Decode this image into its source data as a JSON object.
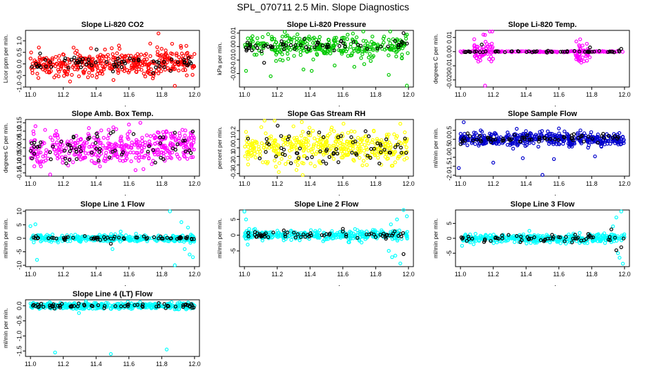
{
  "figure_title": "SPL_070711  2.5 Min. Slope Diagnostics",
  "chart_data": [
    {
      "type": "scatter",
      "title": "Slope Li-820 CO2",
      "ylabel": "Licor ppm per min.",
      "xlim": [
        10.97,
        12.03
      ],
      "ylim": [
        -1.0,
        1.45
      ],
      "xticks": [
        "11.0",
        "11.2",
        "11.4",
        "11.6",
        "11.8",
        "12.0"
      ],
      "yticks": [
        {
          "v": 1.0,
          "label": "1.0"
        },
        {
          "v": 0.5,
          "label": "0.5"
        },
        {
          "v": 0.0,
          "label": "0.0"
        },
        {
          "v": -0.5,
          "label": "-0.5"
        },
        {
          "v": -1.0,
          "label": "-1.0"
        }
      ],
      "series": [
        {
          "name": "slope",
          "color": "#ff0000",
          "n": 420,
          "spread": 0.28,
          "trend": [
            -0.05,
            0.05
          ],
          "outliers": [
            [
              11.78,
              1.32
            ],
            [
              11.73,
              0.88
            ],
            [
              11.95,
              0.78
            ],
            [
              11.88,
              -0.95
            ],
            [
              11.22,
              -0.42
            ]
          ]
        },
        {
          "name": "reference",
          "color": "#000000",
          "n": 65,
          "spread": 0.18,
          "trend": [
            0,
            0.05
          ],
          "outliers": []
        }
      ]
    },
    {
      "type": "scatter",
      "title": "Slope Li-820 Pressure",
      "ylabel": "kPa per min.",
      "xlim": [
        10.97,
        12.03
      ],
      "ylim": [
        -0.03,
        0.012
      ],
      "xticks": [
        "11.0",
        "11.2",
        "11.4",
        "11.6",
        "11.8",
        "12.0"
      ],
      "yticks": [
        {
          "v": 0.01,
          "label": "0.01"
        },
        {
          "v": 0.0,
          "label": "0.00"
        },
        {
          "v": -0.01,
          "label": "-0.01"
        },
        {
          "v": -0.02,
          "label": "-0.02"
        }
      ],
      "series": [
        {
          "name": "slope",
          "color": "#00c800",
          "n": 330,
          "spread": 0.004,
          "trend": [
            0,
            0
          ],
          "outliers": [
            [
              11.01,
              -0.018
            ],
            [
              11.16,
              -0.022
            ],
            [
              11.41,
              -0.018
            ],
            [
              11.88,
              -0.021
            ],
            [
              11.99,
              -0.029
            ],
            [
              11.36,
              -0.017
            ],
            [
              11.67,
              -0.015
            ],
            [
              11.55,
              -0.014
            ],
            [
              11.73,
              -0.013
            ]
          ]
        },
        {
          "name": "reference",
          "color": "#000000",
          "n": 60,
          "spread": 0.002,
          "trend": [
            0,
            0
          ],
          "outliers": [
            [
              11.97,
              0.01
            ],
            [
              11.12,
              -0.012
            ]
          ]
        }
      ]
    },
    {
      "type": "scatter",
      "title": "Slope Li-820 Temp.",
      "ylabel": "degrees C per min.",
      "xlim": [
        10.97,
        12.03
      ],
      "ylim": [
        -0.025,
        0.015
      ],
      "xticks": [
        "11.0",
        "11.2",
        "11.4",
        "11.6",
        "11.8",
        "12.0"
      ],
      "yticks": [
        {
          "v": 0.01,
          "label": "0.01"
        },
        {
          "v": 0.0,
          "label": "0.00"
        },
        {
          "v": -0.01,
          "label": "-0.01"
        },
        {
          "v": -0.02,
          "label": "-0.020"
        }
      ],
      "series": [
        {
          "name": "flat",
          "color": "#ff00ff",
          "n": 170,
          "spread": 0.0002,
          "trend": [
            0,
            0
          ],
          "outliers": []
        },
        {
          "name": "burst-1",
          "color": "#ff00ff",
          "n": 50,
          "spread": 0.006,
          "trend": [
            0,
            0
          ],
          "x_range": [
            11.08,
            11.2
          ],
          "outliers": [
            [
              11.15,
              -0.024
            ],
            [
              11.14,
              0.012
            ]
          ]
        },
        {
          "name": "burst-2",
          "color": "#ff00ff",
          "n": 40,
          "spread": 0.004,
          "trend": [
            0,
            0
          ],
          "x_range": [
            11.7,
            11.79
          ],
          "outliers": []
        },
        {
          "name": "reference",
          "color": "#000000",
          "n": 55,
          "spread": 0.0003,
          "trend": [
            0,
            0
          ],
          "outliers": [
            [
              11.13,
              0.005
            ],
            [
              11.79,
              0.003
            ],
            [
              11.98,
              0.002
            ]
          ]
        }
      ]
    },
    {
      "type": "scatter",
      "title": "Slope Amb. Box Temp.",
      "ylabel": "degrees C per min.",
      "xlim": [
        10.97,
        12.03
      ],
      "ylim": [
        -0.17,
        0.17
      ],
      "xticks": [
        "11.0",
        "11.2",
        "11.4",
        "11.6",
        "11.8",
        "12.0"
      ],
      "yticks": [
        {
          "v": 0.15,
          "label": "0.15"
        },
        {
          "v": 0.1,
          "label": "0.10"
        },
        {
          "v": 0.05,
          "label": "0.05"
        },
        {
          "v": 0.0,
          "label": "0.00"
        },
        {
          "v": -0.05,
          "label": "-0.05"
        },
        {
          "v": -0.1,
          "label": "-0.10"
        },
        {
          "v": -0.15,
          "label": "-0.15"
        }
      ],
      "series": [
        {
          "name": "slope",
          "color": "#ff00ff",
          "n": 420,
          "spread": 0.05,
          "trend": [
            -0.02,
            0.02
          ],
          "outliers": [
            [
              11.67,
              0.15
            ],
            [
              11.6,
              0.14
            ],
            [
              11.12,
              -0.16
            ]
          ]
        },
        {
          "name": "reference",
          "color": "#000000",
          "n": 65,
          "spread": 0.04,
          "trend": [
            -0.01,
            0.02
          ],
          "outliers": []
        }
      ]
    },
    {
      "type": "scatter",
      "title": "Slope Gas Stream RH",
      "ylabel": "percent per min.",
      "xlim": [
        10.97,
        12.03
      ],
      "ylim": [
        -0.33,
        0.33
      ],
      "xticks": [
        "11.0",
        "11.2",
        "11.4",
        "11.6",
        "11.8",
        "12.0"
      ],
      "yticks": [
        {
          "v": 0.2,
          "label": "0.2"
        },
        {
          "v": 0.1,
          "label": "0.1"
        },
        {
          "v": 0.0,
          "label": "0.0"
        },
        {
          "v": -0.1,
          "label": "-0.1"
        },
        {
          "v": -0.2,
          "label": "-0.2"
        },
        {
          "v": -0.3,
          "label": "-0.3"
        }
      ],
      "series": [
        {
          "name": "slope",
          "color": "#ffff00",
          "n": 420,
          "spread": 0.1,
          "trend": [
            0,
            0
          ],
          "outliers": [
            [
              11.35,
              0.3
            ],
            [
              11.95,
              0.28
            ]
          ]
        },
        {
          "name": "reference",
          "color": "#000000",
          "n": 65,
          "spread": 0.1,
          "trend": [
            0,
            0
          ],
          "outliers": []
        }
      ]
    },
    {
      "type": "scatter",
      "title": "Slope Sample Flow",
      "ylabel": "ml/min per min.",
      "xlim": [
        10.97,
        12.03
      ],
      "ylim": [
        -2.05,
        1.1
      ],
      "xticks": [
        "11.0",
        "11.2",
        "11.4",
        "11.6",
        "11.8",
        "12.0"
      ],
      "yticks": [
        {
          "v": 0.5,
          "label": "0.5"
        },
        {
          "v": 0.0,
          "label": "0.0"
        },
        {
          "v": -0.5,
          "label": "-0.5"
        },
        {
          "v": -1.0,
          "label": "-1.0"
        },
        {
          "v": -1.5,
          "label": "-1.5"
        },
        {
          "v": -2.0,
          "label": "-2.0"
        }
      ],
      "series": [
        {
          "name": "slope",
          "color": "#0000cc",
          "n": 440,
          "spread": 0.18,
          "trend": [
            0,
            0.03
          ],
          "outliers": [
            [
              11.5,
              -1.98
            ],
            [
              11.02,
              0.95
            ],
            [
              11.38,
              -1.05
            ],
            [
              11.2,
              -1.3
            ],
            [
              11.57,
              -1.1
            ],
            [
              10.99,
              -1.6
            ],
            [
              11.82,
              -0.95
            ],
            [
              11.6,
              0.6
            ]
          ]
        },
        {
          "name": "reference",
          "color": "#000000",
          "n": 65,
          "spread": 0.12,
          "trend": [
            0,
            0.1
          ],
          "outliers": []
        }
      ]
    },
    {
      "type": "scatter",
      "title": "Slope Line 1 Flow",
      "ylabel": "ml/min per min.",
      "xlim": [
        10.97,
        12.03
      ],
      "ylim": [
        -10.5,
        10.5
      ],
      "xticks": [
        "11.0",
        "11.2",
        "11.4",
        "11.6",
        "11.8",
        "12.0"
      ],
      "yticks": [
        {
          "v": 10,
          "label": "10"
        },
        {
          "v": 5,
          "label": "5"
        },
        {
          "v": 0,
          "label": "0"
        },
        {
          "v": -5,
          "label": "-5"
        },
        {
          "v": -10,
          "label": "-10"
        }
      ],
      "series": [
        {
          "name": "slope",
          "color": "#00ffff",
          "n": 330,
          "spread": 0.6,
          "trend": [
            0,
            0
          ],
          "outliers": [
            [
              11.03,
              5.2
            ],
            [
              11.0,
              4.5
            ],
            [
              11.02,
              -1.5
            ],
            [
              11.04,
              -8.0
            ],
            [
              11.85,
              10.0
            ],
            [
              11.92,
              6.0
            ],
            [
              11.94,
              -4.0
            ],
            [
              11.88,
              -10.0
            ],
            [
              11.97,
              -6.0
            ],
            [
              11.99,
              -7.0
            ],
            [
              11.96,
              4.0
            ],
            [
              11.5,
              -4.0
            ],
            [
              11.55,
              2.5
            ]
          ]
        },
        {
          "name": "reference",
          "color": "#000000",
          "n": 60,
          "spread": 0.3,
          "trend": [
            0,
            0
          ],
          "outliers": [
            [
              11.49,
              -2.0
            ]
          ]
        }
      ]
    },
    {
      "type": "scatter",
      "title": "Slope Line 2 Flow",
      "ylabel": "ml/min per min.",
      "xlim": [
        10.97,
        12.03
      ],
      "ylim": [
        -10.0,
        8.0
      ],
      "xticks": [
        "11.0",
        "11.2",
        "11.4",
        "11.6",
        "11.8",
        "12.0"
      ],
      "yticks": [
        {
          "v": 5,
          "label": "5"
        },
        {
          "v": 0,
          "label": "0"
        },
        {
          "v": -5,
          "label": "-5"
        }
      ],
      "series": [
        {
          "name": "slope",
          "color": "#00ffff",
          "n": 360,
          "spread": 0.8,
          "trend": [
            0,
            0
          ],
          "outliers": [
            [
              11.01,
              5.0
            ],
            [
              11.0,
              7.5
            ],
            [
              11.02,
              -3.0
            ],
            [
              11.88,
              -5.0
            ],
            [
              11.9,
              -7.0
            ],
            [
              11.95,
              -9.0
            ],
            [
              11.97,
              8.0
            ],
            [
              11.93,
              5.0
            ],
            [
              11.99,
              6.0
            ],
            [
              11.92,
              -6.5
            ]
          ]
        },
        {
          "name": "reference",
          "color": "#000000",
          "n": 60,
          "spread": 0.5,
          "trend": [
            0,
            0
          ],
          "outliers": [
            [
              11.97,
              -6.0
            ],
            [
              11.6,
              2.0
            ],
            [
              11.24,
              1.5
            ]
          ]
        }
      ]
    },
    {
      "type": "scatter",
      "title": "Slope Line 3 Flow",
      "ylabel": "ml/min per min.",
      "xlim": [
        10.97,
        12.03
      ],
      "ylim": [
        -9.5,
        9.5
      ],
      "xticks": [
        "11.0",
        "11.2",
        "11.4",
        "11.6",
        "11.8",
        "12.0"
      ],
      "yticks": [
        {
          "v": 5,
          "label": "5"
        },
        {
          "v": 0,
          "label": "0"
        },
        {
          "v": -5,
          "label": "-5"
        }
      ],
      "series": [
        {
          "name": "slope",
          "color": "#00ffff",
          "n": 360,
          "spread": 0.7,
          "trend": [
            0,
            0
          ],
          "outliers": [
            [
              11.98,
              9.0
            ],
            [
              11.95,
              7.0
            ],
            [
              11.93,
              4.0
            ],
            [
              11.97,
              -6.5
            ],
            [
              11.99,
              -8.5
            ],
            [
              11.96,
              -5.0
            ],
            [
              11.01,
              -2.5
            ],
            [
              11.08,
              -2.0
            ],
            [
              11.42,
              2.5
            ]
          ]
        },
        {
          "name": "reference",
          "color": "#000000",
          "n": 60,
          "spread": 0.5,
          "trend": [
            0,
            0
          ],
          "outliers": [
            [
              11.98,
              -3.0
            ],
            [
              11.95,
              -4.0
            ],
            [
              11.92,
              3.0
            ]
          ]
        }
      ]
    },
    {
      "type": "scatter",
      "title": "Slope Line 4 (LT) Flow",
      "ylabel": "ml/min per min.",
      "xlim": [
        10.97,
        12.03
      ],
      "ylim": [
        -1.68,
        0.2
      ],
      "xticks": [
        "11.0",
        "11.2",
        "11.4",
        "11.6",
        "11.8",
        "12.0"
      ],
      "yticks": [
        {
          "v": 0.0,
          "label": "0.0"
        },
        {
          "v": -0.5,
          "label": "-0.5"
        },
        {
          "v": -1.0,
          "label": "-1.0"
        },
        {
          "v": -1.5,
          "label": "-1.5"
        }
      ],
      "series": [
        {
          "name": "slope",
          "color": "#00ffff",
          "n": 460,
          "spread": 0.05,
          "trend": [
            0,
            0
          ],
          "outliers": [
            [
              11.15,
              -1.55
            ],
            [
              11.49,
              -1.6
            ],
            [
              11.83,
              -1.45
            ],
            [
              11.86,
              0.12
            ]
          ]
        },
        {
          "name": "reference",
          "color": "#000000",
          "n": 65,
          "spread": 0.04,
          "trend": [
            0,
            0
          ],
          "outliers": []
        }
      ]
    }
  ]
}
